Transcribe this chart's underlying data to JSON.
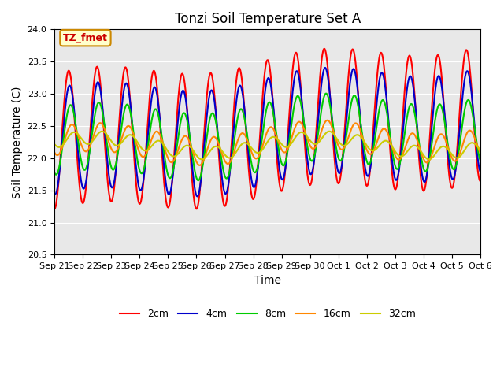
{
  "title": "Tonzi Soil Temperature Set A",
  "xlabel": "Time",
  "ylabel": "Soil Temperature (C)",
  "ylim": [
    20.5,
    24.0
  ],
  "annotation_text": "TZ_fmet",
  "annotation_color": "#cc0000",
  "annotation_bg": "#ffffcc",
  "annotation_border": "#cc8800",
  "line_colors": {
    "2cm": "#ff0000",
    "4cm": "#0000cc",
    "8cm": "#00cc00",
    "16cm": "#ff8800",
    "32cm": "#cccc00"
  },
  "line_widths": {
    "2cm": 1.5,
    "4cm": 1.5,
    "8cm": 1.5,
    "16cm": 1.5,
    "32cm": 1.5
  },
  "x_tick_labels": [
    "Sep 21",
    "Sep 22",
    "Sep 23",
    "Sep 24",
    "Sep 25",
    "Sep 26",
    "Sep 27",
    "Sep 28",
    "Sep 29",
    "Sep 30",
    "Oct 1",
    "Oct 2",
    "Oct 3",
    "Oct 4",
    "Oct 5",
    "Oct 6"
  ],
  "plot_bg_color": "#e8e8e8",
  "fig_bg_color": "#ffffff",
  "grid_color": "#ffffff",
  "n_days": 15,
  "points_per_day": 48,
  "base_temp": 22.2,
  "amp_2cm": 1.05,
  "amp_4cm": 0.82,
  "amp_8cm": 0.52,
  "amp_16cm": 0.22,
  "amp_32cm": 0.1,
  "phase_2cm": 0.0,
  "phase_4cm": 0.18,
  "phase_8cm": 0.4,
  "phase_16cm": 0.7,
  "phase_32cm": 1.15,
  "trend": 0.035
}
